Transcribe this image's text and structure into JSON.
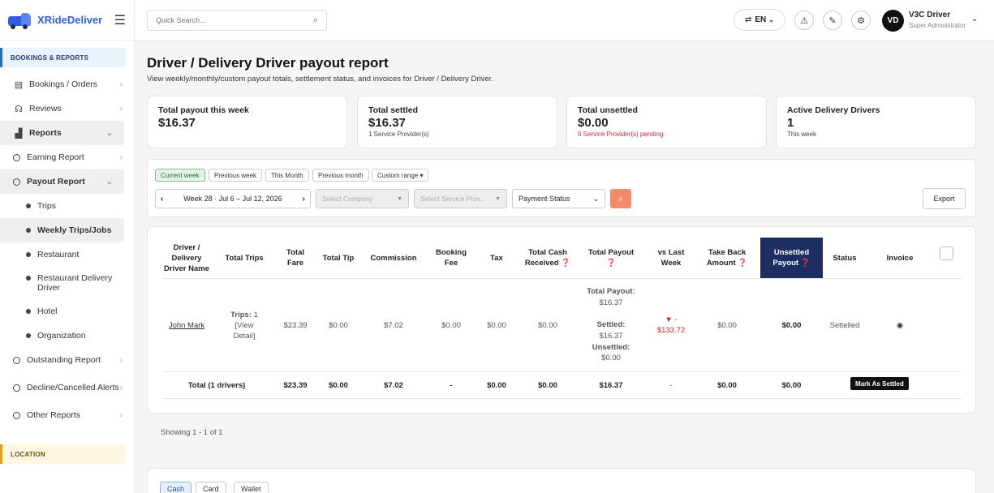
{
  "brand": {
    "name": "XRideDeliver"
  },
  "sidebar": {
    "section_bookings": "BOOKINGS & REPORTS",
    "section_location": "LOCATION",
    "items": [
      {
        "label": "Bookings / Orders"
      },
      {
        "label": "Reviews"
      },
      {
        "label": "Reports"
      },
      {
        "label": "Earning Report"
      },
      {
        "label": "Payout Report"
      },
      {
        "label": "Trips"
      },
      {
        "label": "Weekly Trips/Jobs"
      },
      {
        "label": "Restaurant"
      },
      {
        "label": "Restaurant Delivery Driver"
      },
      {
        "label": "Hotel"
      },
      {
        "label": "Organization"
      },
      {
        "label": "Outstanding Report"
      },
      {
        "label": "Decline/Cancelled Alerts"
      },
      {
        "label": "Other Reports"
      }
    ]
  },
  "topbar": {
    "search_placeholder": "Quick Search...",
    "language": "EN",
    "user_initials": "VD",
    "user_name": "V3C Driver",
    "user_role": "Super Administrator"
  },
  "page": {
    "title": "Driver / Delivery Driver payout report",
    "subtitle": "View weekly/monthly/custom payout totals, settlement status, and invoices for Driver / Delivery Driver."
  },
  "cards": [
    {
      "title": "Total payout this week",
      "value": "$16.37",
      "sub": ""
    },
    {
      "title": "Total settled",
      "value": "$16.37",
      "sub": "1 Service Provider(s)"
    },
    {
      "title": "Total unsettled",
      "value": "$0.00",
      "sub": "0 Service Provider(s) pending"
    },
    {
      "title": "Active Delivery Drivers",
      "value": "1",
      "sub": "This week"
    }
  ],
  "filters": {
    "chips": [
      "Current week",
      "Previous week",
      "This Month",
      "Previous month",
      "Custom range ▾"
    ],
    "week_label": "Week 28 · Jul 6 – Jul 12, 2026",
    "company_placeholder": "Select Company",
    "provider_placeholder": "Select Service Prov...",
    "payment_status": "Payment Status",
    "export_label": "Export"
  },
  "table": {
    "headers": [
      "Driver / Delivery Driver Name",
      "Total Trips",
      "Total Fare",
      "Total Tip",
      "Commission",
      "Booking Fee",
      "Tax",
      "Total Cash Received ❓",
      "Total Payout ❓",
      "vs Last Week",
      "Take Back Amount ❓",
      "Unsettled Payout ❓",
      "Status",
      "Invoice"
    ],
    "row": {
      "driver": "John Mark",
      "trips_label": "Trips:",
      "trips_value": "1",
      "trips_link": "[View Detail]",
      "fare": "$23.39",
      "tip": "$0.00",
      "commission": "$7.02",
      "booking_fee": "$0.00",
      "tax": "$0.00",
      "cash_received": "$0.00",
      "payout_total_label": "Total Payout:",
      "payout_total": "$16.37",
      "payout_settled_label": "Settled:",
      "payout_settled": "$16.37",
      "payout_unsettled_label": "Unsettled:",
      "payout_unsettled": "$0.00",
      "vs_last_week_arrow": "▼ -",
      "vs_last_week": "$133.72",
      "take_back": "$0.00",
      "unsettled_payout": "$0.00",
      "status": "Settelled"
    },
    "totals": {
      "label": "Total (1 drivers)",
      "fare": "$23.39",
      "tip": "$0.00",
      "commission": "$7.02",
      "booking_fee": "-",
      "tax": "$0.00",
      "cash_received": "$0.00",
      "payout": "$16.37",
      "vs_last_week": "-",
      "take_back": "$0.00",
      "unsettled": "$0.00",
      "action": "Mark As Settled"
    }
  },
  "pagination": {
    "showing": "Showing 1 - 1 of 1"
  },
  "bottom_tabs": [
    "Cash",
    "Card",
    "Wallet"
  ],
  "colors": {
    "accent": "#2f5fe0",
    "header_dark": "#1d2f62",
    "search_btn": "#f58a6b",
    "negative": "#c62828"
  }
}
